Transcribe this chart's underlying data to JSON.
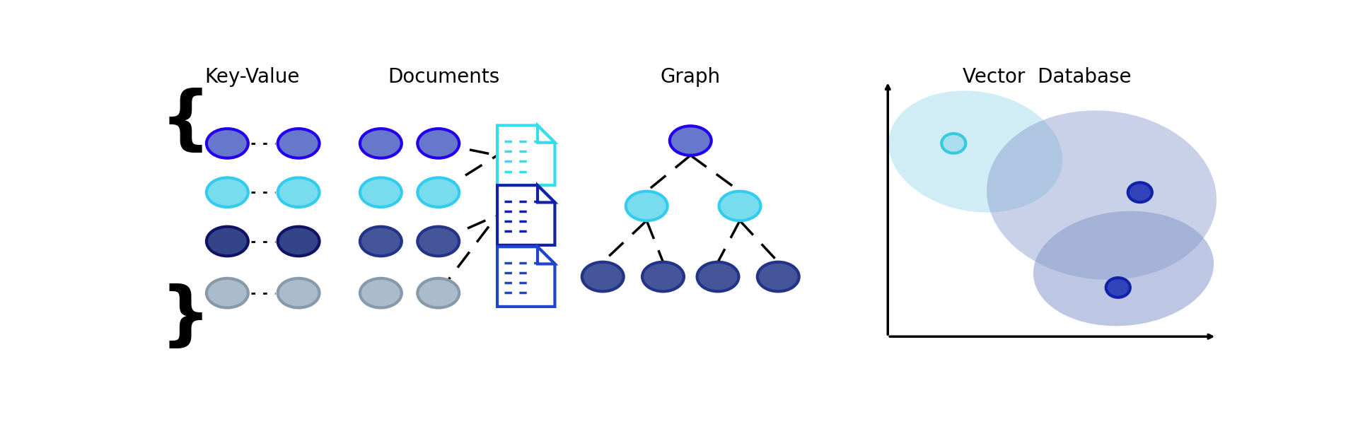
{
  "title_kv": "Key-Value",
  "title_docs": "Documents",
  "title_graph": "Graph",
  "title_vector": "Vector  Database",
  "bg_color": "#ffffff",
  "title_fontsize": 20,
  "kv_colors": [
    "#6677cc",
    "#77ddee",
    "#334488",
    "#aabbcc"
  ],
  "kv_edge_colors": [
    "#2200ee",
    "#33ccee",
    "#111166",
    "#8899aa"
  ],
  "doc_left_colors": [
    "#6677cc",
    "#77ddee",
    "#445599",
    "#aabbcc"
  ],
  "doc_left_edges": [
    "#2200ee",
    "#33ccee",
    "#223388",
    "#8899aa"
  ],
  "doc_right_colors": [
    "#6677cc",
    "#77ddee",
    "#445599",
    "#aabbcc"
  ],
  "doc_right_edges": [
    "#2200ee",
    "#33ccee",
    "#223388",
    "#8899aa"
  ],
  "graph_root_color": "#6677cc",
  "graph_root_edge": "#2200ee",
  "graph_mid_color": "#77ddee",
  "graph_mid_edge": "#33ccee",
  "graph_leaf_color": "#445599",
  "graph_leaf_edge": "#223388",
  "doc_icon1_color": "#33ddee",
  "doc_icon2_color": "#1122aa",
  "doc_icon3_color": "#2244cc",
  "vec_blob1_color": "#aadeee",
  "vec_blob2_color": "#8899cc",
  "vec_blob3_color": "#8899cc",
  "vec_dot_cyan_face": "#aadeee",
  "vec_dot_cyan_edge": "#33ccdd",
  "vec_dot_blue_face": "#3344bb",
  "vec_dot_blue_edge": "#1122aa"
}
